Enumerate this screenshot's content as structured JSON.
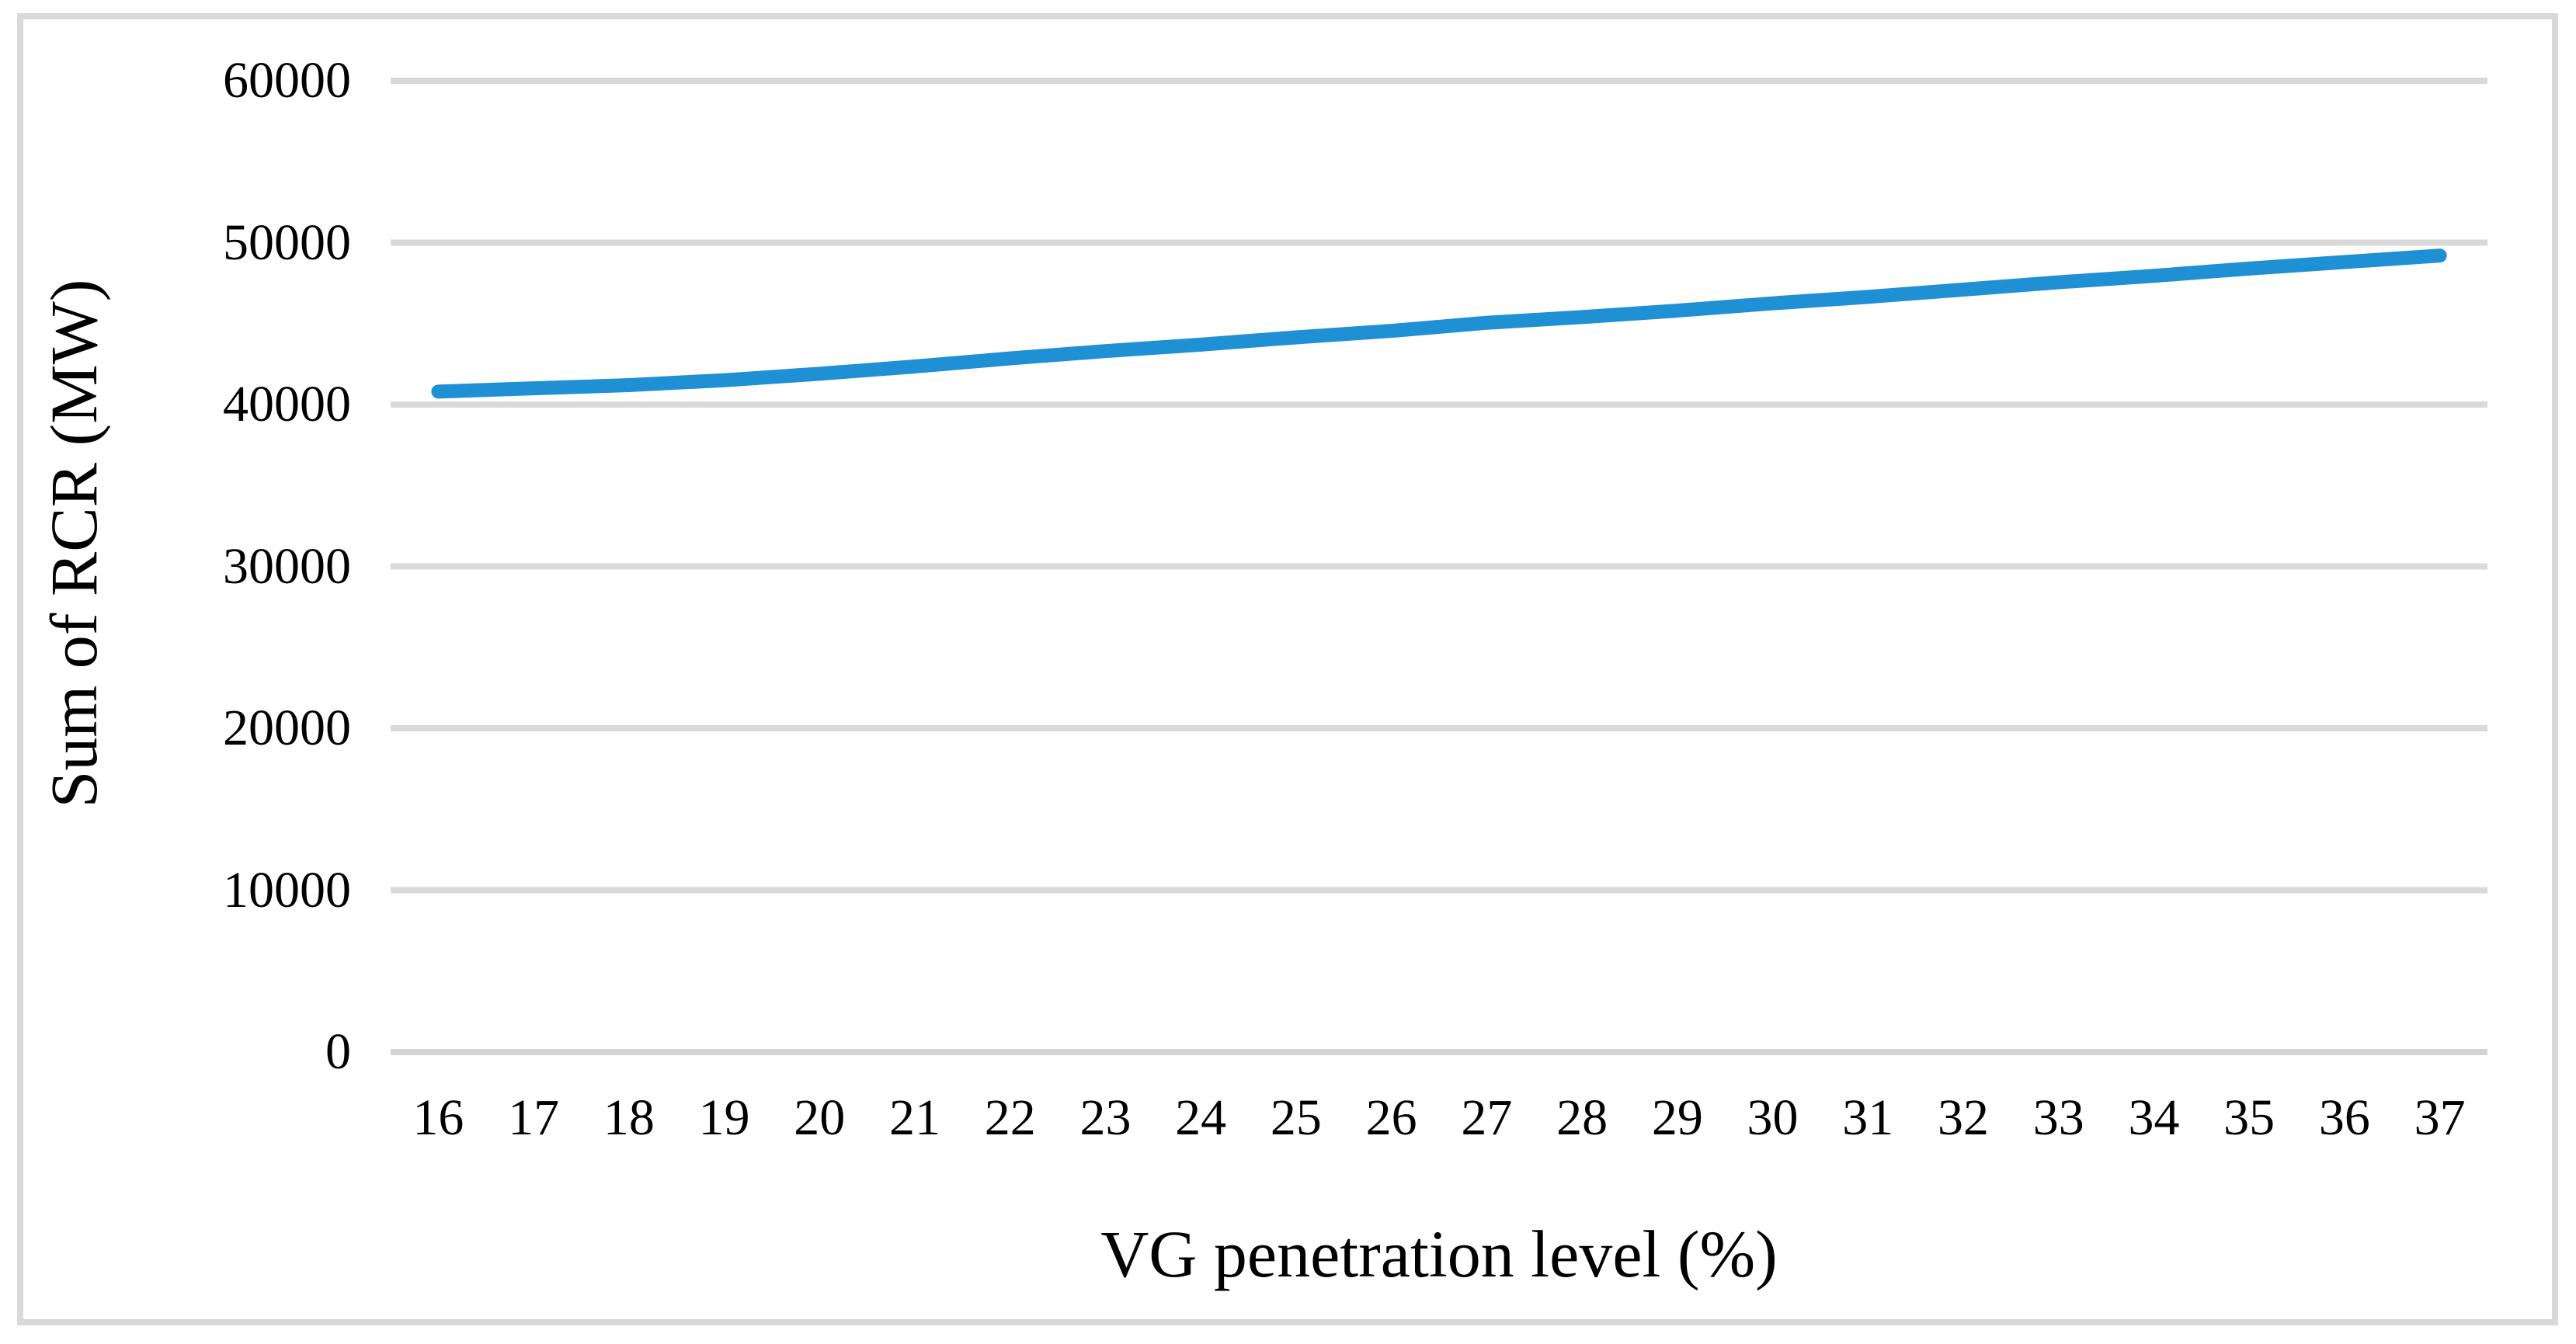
{
  "figure": {
    "title": ""
  },
  "chart_data": {
    "type": "line",
    "title": "",
    "xlabel": "VG penetration level (%)",
    "ylabel": "Sum of RCR (MW)",
    "categories": [
      16,
      17,
      18,
      19,
      20,
      21,
      22,
      23,
      24,
      25,
      26,
      27,
      28,
      29,
      30,
      31,
      32,
      33,
      34,
      35,
      36,
      37
    ],
    "series": [
      {
        "name": "Sum of RCR",
        "values": [
          40800,
          41000,
          41200,
          41500,
          41900,
          42350,
          42850,
          43300,
          43700,
          44150,
          44550,
          45050,
          45400,
          45800,
          46250,
          46650,
          47100,
          47550,
          47950,
          48400,
          48800,
          49200
        ]
      }
    ],
    "ylim": [
      0,
      60000
    ],
    "yticks": [
      0,
      10000,
      20000,
      30000,
      40000,
      50000,
      60000
    ],
    "grid": "horizontal",
    "legend_position": "none",
    "line_color": "#2090d4",
    "gridline_color": "#d9d9d9",
    "axis_line_color": "#d3d3d3",
    "frame_color": "#d9d9d9",
    "text_color": "#000000"
  }
}
